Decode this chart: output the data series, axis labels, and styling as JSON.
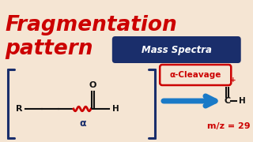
{
  "bg_color": "#f5e5d3",
  "title_line1": "Fragmentation",
  "title_line2": "pattern",
  "title_color": "#cc0000",
  "title_fontsize": 19,
  "badge_text": "Mass Spectra",
  "badge_bg": "#1a2e6b",
  "badge_text_color": "#ffffff",
  "badge_fontsize": 8.5,
  "bracket_color": "#1a2e6b",
  "molecule_color": "#111111",
  "alpha_color": "#1a2e6b",
  "bond_squiggle_color": "#cc0000",
  "alpha_label": "α",
  "cleavage_label": "α-Cleavage",
  "cleavage_box_color": "#cc0000",
  "cleavage_text_color": "#cc0000",
  "arrow_color": "#1a7ac7",
  "product_label": "m/z = 29",
  "product_color": "#cc0000",
  "plus_color": "#cc0000"
}
